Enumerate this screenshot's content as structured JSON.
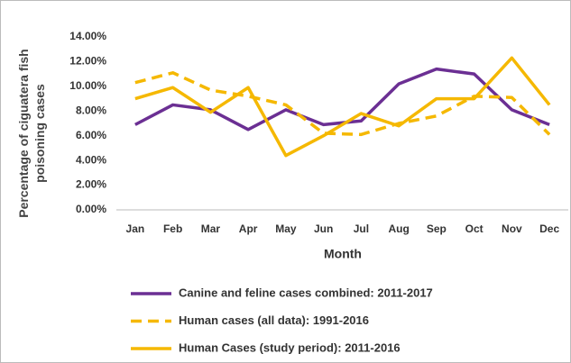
{
  "chart_data": {
    "type": "line",
    "y_label": "Percentage of ciguatera fish poisoning cases",
    "x_label": "Month",
    "categories": [
      "Jan",
      "Feb",
      "Mar",
      "Apr",
      "May",
      "Jun",
      "Jul",
      "Aug",
      "Sep",
      "Oct",
      "Nov",
      "Dec"
    ],
    "series": [
      {
        "name": "Canine and feline cases combined: 2011-2017",
        "color": "#6b2f93",
        "dash": false,
        "values": [
          6.9,
          8.5,
          8.1,
          6.5,
          8.1,
          6.9,
          7.2,
          10.2,
          11.4,
          11.0,
          8.1,
          6.9
        ]
      },
      {
        "name": "Human cases (all data): 1991-2016",
        "color": "#f5b800",
        "dash": true,
        "values": [
          10.3,
          11.1,
          9.7,
          9.2,
          8.5,
          6.2,
          6.1,
          7.0,
          7.6,
          9.2,
          9.1,
          6.1
        ]
      },
      {
        "name": "Human Cases (study period): 2011-2016",
        "color": "#f5b800",
        "dash": false,
        "values": [
          9.0,
          9.9,
          7.9,
          9.9,
          4.4,
          6.0,
          7.8,
          6.8,
          9.0,
          9.0,
          12.3,
          8.5
        ]
      }
    ],
    "ylim": [
      0,
      14
    ],
    "yticks": [
      {
        "value": 0,
        "label": "0.00%"
      },
      {
        "value": 2,
        "label": "2.00%"
      },
      {
        "value": 4,
        "label": "4.00%"
      },
      {
        "value": 6,
        "label": "6.00%"
      },
      {
        "value": 8,
        "label": "8.00%"
      },
      {
        "value": 10,
        "label": "10.00%"
      },
      {
        "value": 12,
        "label": "12.00%"
      },
      {
        "value": 14,
        "label": "14.00%"
      }
    ],
    "legend": "bottom"
  }
}
